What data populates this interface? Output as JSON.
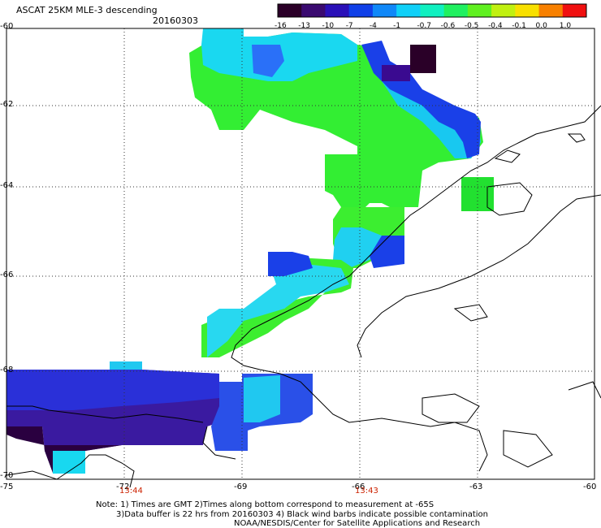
{
  "header": {
    "title": "ASCAT 25KM MLE-3 descending",
    "date": "20160303"
  },
  "colorbar": {
    "labels": [
      "-16",
      "-13",
      "-10",
      "-7",
      "-4",
      "-1",
      "-0.7",
      "-0.6",
      "-0.5",
      "-0.4",
      "-0.1",
      "0.0",
      "1.0"
    ],
    "colors": [
      "#2b0028",
      "#3a0a70",
      "#2a10b8",
      "#1040e8",
      "#1088f8",
      "#10d0f8",
      "#10f0c0",
      "#20f060",
      "#60f020",
      "#c0f010",
      "#f8e000",
      "#f88000",
      "#f01010"
    ]
  },
  "axes": {
    "y_labels": [
      "-60",
      "-62",
      "-64",
      "-66",
      "-68",
      "-70"
    ],
    "x_labels": [
      "-75",
      "-72",
      "-69",
      "-66",
      "-63",
      "-60"
    ],
    "x_times": [
      "13:44",
      "13:43"
    ]
  },
  "footer": {
    "line1": "Note: 1) Times are GMT 2)Times along bottom correspond to measurement at -65S",
    "line2": "3)Data buffer is 22 hrs from 20160303 4) Black wind barbs indicate possible contamination",
    "line3": "NOAA/NESDIS/Center for Satellite Applications and Research"
  }
}
